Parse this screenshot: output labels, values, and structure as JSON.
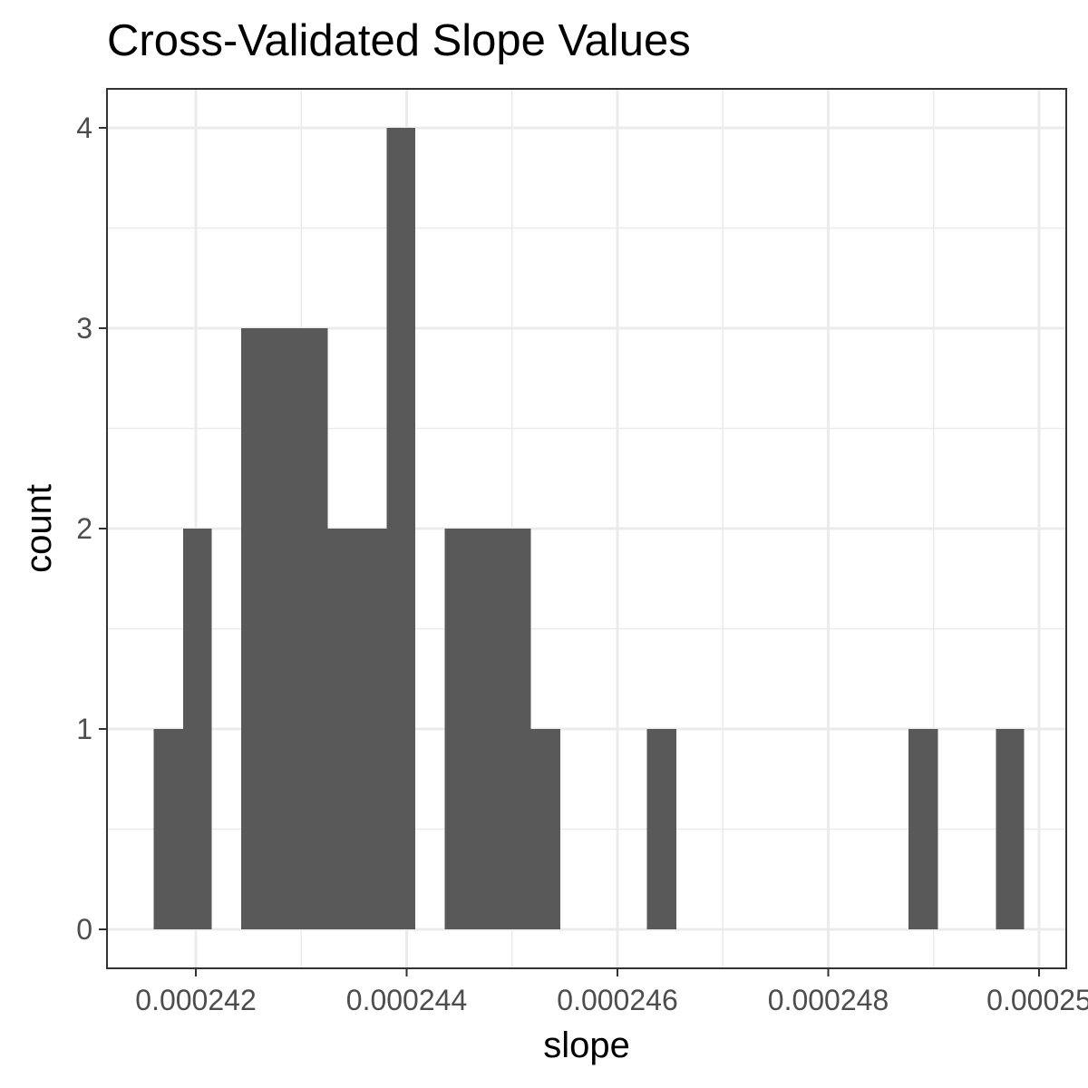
{
  "chart_data": {
    "type": "bar",
    "title": "Cross-Validated Slope Values",
    "xlabel": "slope",
    "ylabel": "count",
    "xlim": [
      0.0002415,
      0.00025
    ],
    "ylim": [
      0,
      4
    ],
    "x_ticks": [
      {
        "value": 0.000242,
        "label": "0.000242"
      },
      {
        "value": 0.000244,
        "label": "0.000244"
      },
      {
        "value": 0.000246,
        "label": "0.000246"
      },
      {
        "value": 0.000248,
        "label": "0.000248"
      },
      {
        "value": 0.00025,
        "label": "0.00025"
      }
    ],
    "x_minor_ticks": [
      0.000243,
      0.000245,
      0.000247,
      0.000249
    ],
    "y_ticks": [
      {
        "value": 0,
        "label": "0"
      },
      {
        "value": 1,
        "label": "1"
      },
      {
        "value": 2,
        "label": "2"
      },
      {
        "value": 3,
        "label": "3"
      },
      {
        "value": 4,
        "label": "4"
      }
    ],
    "y_minor_ticks": [
      0.5,
      1.5,
      2.5,
      3.5
    ],
    "bins": [
      {
        "start": 0.0002416,
        "end": 0.00024188,
        "count": 1
      },
      {
        "start": 0.00024188,
        "end": 0.00024215,
        "count": 2
      },
      {
        "start": 0.00024243,
        "end": 0.0002427,
        "count": 3
      },
      {
        "start": 0.0002427,
        "end": 0.00024298,
        "count": 3
      },
      {
        "start": 0.00024298,
        "end": 0.00024325,
        "count": 3
      },
      {
        "start": 0.00024325,
        "end": 0.00024353,
        "count": 2
      },
      {
        "start": 0.00024353,
        "end": 0.00024381,
        "count": 2
      },
      {
        "start": 0.00024381,
        "end": 0.00024408,
        "count": 4
      },
      {
        "start": 0.00024436,
        "end": 0.00024463,
        "count": 2
      },
      {
        "start": 0.00024463,
        "end": 0.00024491,
        "count": 2
      },
      {
        "start": 0.00024491,
        "end": 0.00024518,
        "count": 2
      },
      {
        "start": 0.00024518,
        "end": 0.00024546,
        "count": 1
      },
      {
        "start": 0.00024628,
        "end": 0.00024656,
        "count": 1
      },
      {
        "start": 0.00024876,
        "end": 0.00024904,
        "count": 1
      },
      {
        "start": 0.00024959,
        "end": 0.00024986,
        "count": 1
      }
    ],
    "bar_color": "#595959",
    "grid": true,
    "legend": "none"
  }
}
